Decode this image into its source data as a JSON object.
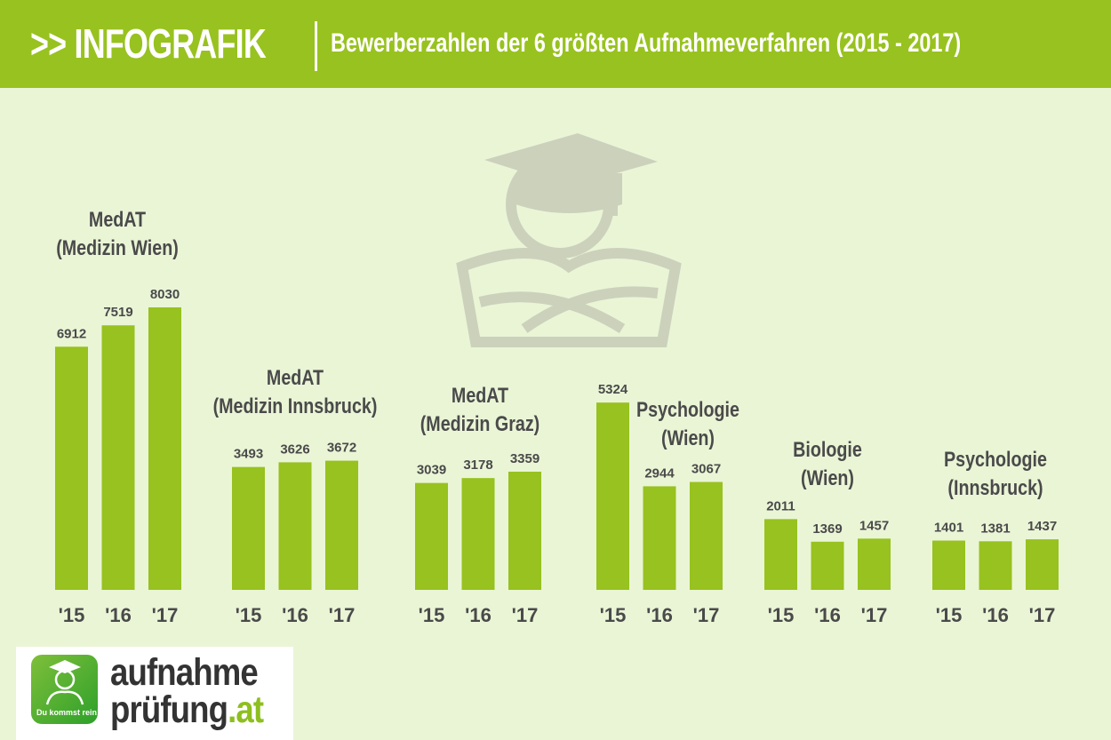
{
  "header": {
    "prefix": ">> INFOGRAFIK",
    "subtitle": "Bewerberzahlen der 6 größten Aufnahmeverfahren (2015 - 2017)"
  },
  "logo": {
    "line1": "aufnahme",
    "line2": "prüfung",
    "tld": ".at",
    "slogan": "Du kommst rein!"
  },
  "colors": {
    "header": "#98c21f",
    "bar": "#97c21f",
    "background": "#eaf5d6",
    "text": "#4a4a4a"
  },
  "chart_data": {
    "type": "bar",
    "title": "Bewerberzahlen der 6 größten Aufnahmeverfahren (2015 - 2017)",
    "categories": [
      "'15",
      "'16",
      "'17"
    ],
    "groups": [
      {
        "label_line1": "MedAT",
        "label_line2": "(Medizin Wien)",
        "values": [
          6912,
          7519,
          8030
        ]
      },
      {
        "label_line1": "MedAT",
        "label_line2": "(Medizin Innsbruck)",
        "values": [
          3493,
          3626,
          3672
        ]
      },
      {
        "label_line1": "MedAT",
        "label_line2": "(Medizin Graz)",
        "values": [
          3039,
          3178,
          3359
        ]
      },
      {
        "label_line1": "Psychologie",
        "label_line2": "(Wien)",
        "values": [
          5324,
          2944,
          3067
        ]
      },
      {
        "label_line1": "Biologie",
        "label_line2": "(Wien)",
        "values": [
          2011,
          1369,
          1457
        ]
      },
      {
        "label_line1": "Psychologie",
        "label_line2": "(Innsbruck)",
        "values": [
          1401,
          1381,
          1437
        ]
      }
    ],
    "ylim": [
      0,
      8030
    ],
    "grid": false
  }
}
